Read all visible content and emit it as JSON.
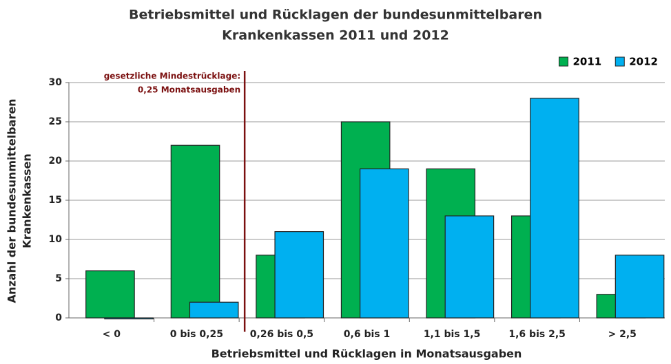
{
  "chart_data": {
    "type": "bar",
    "title": [
      "Betriebsmittel und Rücklagen der bundesunmittelbaren",
      "Krankenkassen 2011 und 2012"
    ],
    "x_label": "Betriebsmittel und Rücklagen  in Monatsausgaben",
    "y_label": [
      "Anzahl der bundesunmittelbaren",
      "Krankenkassen"
    ],
    "annotation": [
      "gesetzliche Mindestrücklage:",
      "0,25 Monatsausgaben"
    ],
    "categories": [
      "< 0",
      "0 bis 0,25",
      "0,26 bis 0,5",
      "0,6 bis 1",
      "1,1 bis 1,5",
      "1,6 bis 2,5",
      "> 2,5"
    ],
    "series": [
      {
        "name": "2011",
        "color": "#00b050",
        "values": [
          6,
          22,
          8,
          25,
          19,
          13,
          3
        ]
      },
      {
        "name": "2012",
        "color": "#00b0f0",
        "values": [
          0,
          2,
          11,
          19,
          13,
          28,
          8
        ]
      }
    ],
    "ylim": [
      0,
      30
    ],
    "yticks": [
      0,
      5,
      10,
      15,
      20,
      25,
      30
    ],
    "grid": true,
    "legend": "top-right"
  }
}
